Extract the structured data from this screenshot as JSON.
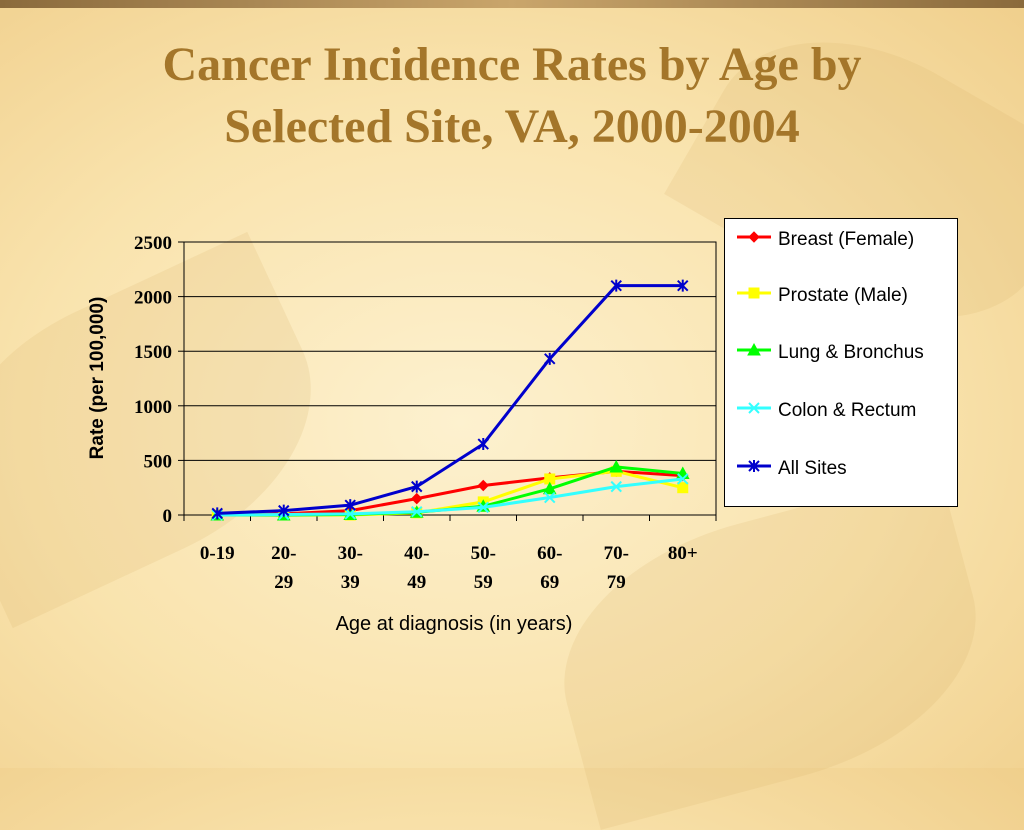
{
  "slide": {
    "title_line1": "Cancer Incidence Rates by Age by",
    "title_line2": "Selected Site, VA, 2000-2004"
  },
  "colors": {
    "title": "#a4762a",
    "breast": "#ff0000",
    "prostate": "#ffff00",
    "lung": "#00ff00",
    "colon": "#33ffff",
    "all_sites": "#0000cc"
  },
  "chart_data": {
    "type": "line",
    "title": "Cancer Incidence Rates by Age by Selected Site, VA, 2000-2004",
    "xlabel": "Age at diagnosis (in years)",
    "ylabel": "Rate (per 100,000)",
    "ylim": [
      0,
      2500
    ],
    "yticks": [
      "0",
      "500",
      "1000",
      "1500",
      "2000",
      "2500"
    ],
    "grid": true,
    "legend_position": "right",
    "categories": [
      [
        "0-19"
      ],
      [
        "20-",
        "29"
      ],
      [
        "30-",
        "39"
      ],
      [
        "40-",
        "49"
      ],
      [
        "50-",
        "59"
      ],
      [
        "60-",
        "69"
      ],
      [
        "70-",
        "79"
      ],
      [
        "80+"
      ]
    ],
    "series": [
      {
        "name": "Breast (Female)",
        "marker": "diamond",
        "color": "#ff0000",
        "values": [
          1,
          10,
          40,
          150,
          270,
          340,
          400,
          360
        ]
      },
      {
        "name": "Prostate (Male)",
        "marker": "square",
        "color": "#ffff00",
        "values": [
          0,
          0,
          0,
          20,
          120,
          330,
          400,
          250
        ]
      },
      {
        "name": "Lung & Bronchus",
        "marker": "triangle",
        "color": "#00ff00",
        "values": [
          0,
          0,
          5,
          25,
          80,
          240,
          440,
          380
        ]
      },
      {
        "name": "Colon & Rectum",
        "marker": "x",
        "color": "#33ffff",
        "values": [
          0,
          5,
          10,
          30,
          70,
          160,
          260,
          330
        ]
      },
      {
        "name": "All Sites",
        "marker": "asterisk",
        "color": "#0000cc",
        "values": [
          15,
          40,
          90,
          260,
          650,
          1430,
          2100,
          2100
        ]
      }
    ]
  }
}
